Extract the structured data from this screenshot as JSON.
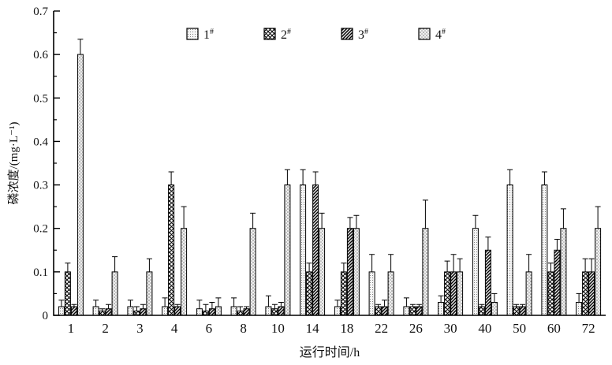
{
  "figure": {
    "background": "#ffffff",
    "axis_color": "#000000",
    "bar_outline_color": "#000000"
  },
  "chart_data": {
    "type": "bar",
    "title": "",
    "xlabel": "运行时间/h",
    "ylabel": "磷浓度/(mg·L⁻¹)",
    "categories": [
      "1",
      "2",
      "3",
      "4",
      "6",
      "8",
      "10",
      "14",
      "18",
      "22",
      "26",
      "30",
      "40",
      "50",
      "60",
      "72"
    ],
    "series": [
      {
        "name": "1#",
        "pattern": "fine-dots",
        "values": [
          0.02,
          0.02,
          0.02,
          0.02,
          0.015,
          0.02,
          0.02,
          0.3,
          0.02,
          0.1,
          0.02,
          0.03,
          0.2,
          0.3,
          0.3,
          0.03
        ],
        "errors_plus": [
          0.015,
          0.015,
          0.015,
          0.02,
          0.02,
          0.02,
          0.025,
          0.035,
          0.015,
          0.04,
          0.02,
          0.015,
          0.03,
          0.035,
          0.03,
          0.02
        ]
      },
      {
        "name": "2#",
        "pattern": "crosshatch",
        "values": [
          0.1,
          0.01,
          0.01,
          0.3,
          0.01,
          0.01,
          0.015,
          0.1,
          0.1,
          0.02,
          0.02,
          0.1,
          0.02,
          0.02,
          0.1,
          0.1
        ],
        "errors_plus": [
          0.02,
          0.005,
          0.01,
          0.03,
          0.015,
          0.01,
          0.01,
          0.02,
          0.02,
          0.005,
          0.005,
          0.025,
          0.005,
          0.005,
          0.02,
          0.03
        ]
      },
      {
        "name": "3#",
        "pattern": "dense-diagonal",
        "values": [
          0.02,
          0.015,
          0.015,
          0.02,
          0.015,
          0.015,
          0.02,
          0.3,
          0.2,
          0.02,
          0.02,
          0.1,
          0.15,
          0.02,
          0.15,
          0.1
        ],
        "errors_plus": [
          0.005,
          0.01,
          0.01,
          0.005,
          0.015,
          0.005,
          0.01,
          0.03,
          0.025,
          0.015,
          0.005,
          0.04,
          0.03,
          0.005,
          0.025,
          0.03
        ]
      },
      {
        "name": "4#",
        "pattern": "coarse-dots",
        "values": [
          0.6,
          0.1,
          0.1,
          0.2,
          0.02,
          0.2,
          0.3,
          0.2,
          0.2,
          0.1,
          0.2,
          0.1,
          0.03,
          0.1,
          0.2,
          0.2
        ],
        "errors_plus": [
          0.035,
          0.035,
          0.03,
          0.05,
          0.02,
          0.035,
          0.035,
          0.035,
          0.03,
          0.04,
          0.065,
          0.03,
          0.02,
          0.04,
          0.045,
          0.05
        ]
      }
    ],
    "legend": [
      {
        "base": "1",
        "sup": "#"
      },
      {
        "base": "2",
        "sup": "#"
      },
      {
        "base": "3",
        "sup": "#"
      },
      {
        "base": "4",
        "sup": "#"
      }
    ],
    "legend_position": "inside-top-center",
    "ylim": [
      0,
      0.7
    ],
    "yticks": [
      "0",
      "0.1",
      "0.2",
      "0.3",
      "0.4",
      "0.5",
      "0.6",
      "0.7"
    ],
    "ytick_values": [
      0,
      0.1,
      0.2,
      0.3,
      0.4,
      0.5,
      0.6,
      0.7
    ],
    "minor_tick_step": 0.05,
    "grid": false,
    "error_bars": true
  }
}
